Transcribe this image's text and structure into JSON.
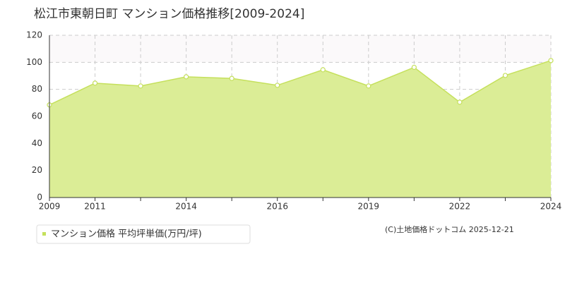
{
  "chart_data": {
    "type": "area",
    "title": "松江市東朝日町 マンション価格推移[2009-2024]",
    "categories": [
      "2009",
      "2011",
      null,
      "2014",
      null,
      "2016",
      null,
      "2019",
      null,
      "2022",
      null,
      "2024"
    ],
    "series": [
      {
        "name": "マンション価格 平均坪単価(万円/坪)",
        "color": "#c5e05c",
        "values": [
          68.5,
          84.6,
          82.5,
          89.3,
          88.1,
          83,
          94.5,
          82.5,
          96.3,
          70.5,
          90.3,
          101.3
        ]
      }
    ],
    "ylim": [
      0,
      120
    ],
    "yticks": [
      0,
      20,
      40,
      60,
      80,
      100,
      120
    ],
    "grid": true,
    "fill_color": "#dbed96",
    "copyright": "(C)土地価格ドットコム 2025-12-21"
  }
}
